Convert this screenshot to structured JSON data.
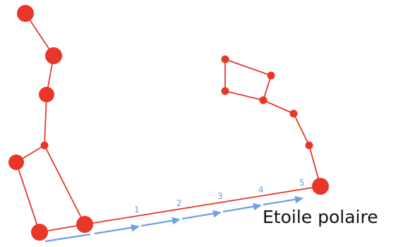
{
  "diagram": {
    "star_label": "Etoile polaire",
    "step_labels": [
      "1",
      "2",
      "3",
      "4",
      "5"
    ],
    "colors": {
      "stars_and_lines": "#e8362a",
      "arrows": "#6f9fe8",
      "label_text": "#111111"
    }
  }
}
